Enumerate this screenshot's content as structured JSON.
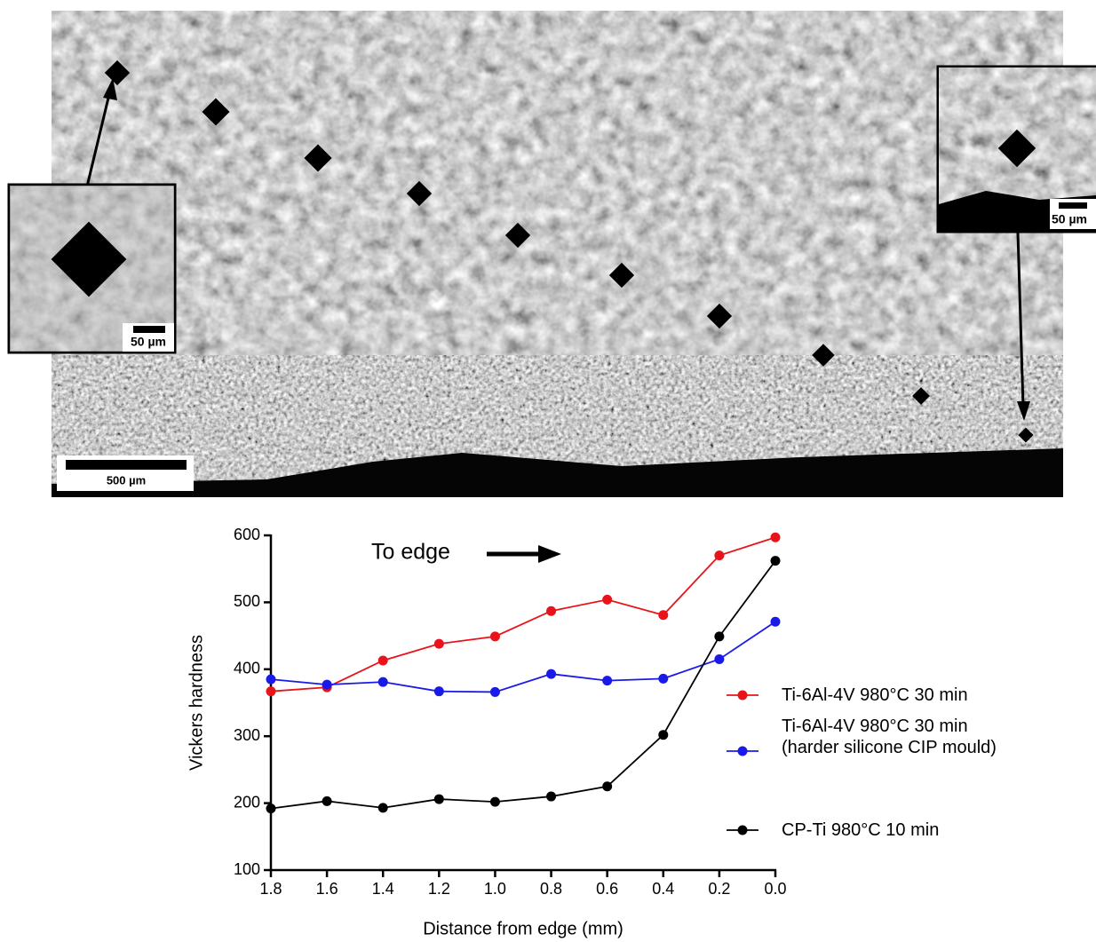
{
  "micrograph": {
    "scale_bar": "500 µm",
    "inset_left_scale": "50 µm",
    "inset_right_scale": "50 µm"
  },
  "chart_data": {
    "type": "line",
    "annotation": "To edge",
    "xlabel": "Distance from edge (mm)",
    "ylabel": "Vickers hardness",
    "x": [
      1.8,
      1.6,
      1.4,
      1.2,
      1.0,
      0.8,
      0.6,
      0.4,
      0.2,
      0.0
    ],
    "series": [
      {
        "name": "Ti-6Al-4V 980°C 30 min",
        "color": "#e8141a",
        "values": [
          367,
          373,
          413,
          438,
          449,
          487,
          504,
          481,
          570,
          597
        ]
      },
      {
        "name": "Ti-6Al-4V 980°C 30 min\n(harder silicone CIP mould)",
        "color": "#1a1ae8",
        "values": [
          385,
          377,
          381,
          367,
          366,
          393,
          383,
          386,
          415,
          471
        ]
      },
      {
        "name": "CP-Ti 980°C 10 min",
        "color": "#000000",
        "values": [
          192,
          203,
          193,
          206,
          202,
          210,
          225,
          302,
          449,
          562
        ]
      }
    ],
    "xlim": [
      1.8,
      0.0
    ],
    "ylim": [
      100,
      600
    ],
    "xticks": [
      1.8,
      1.6,
      1.4,
      1.2,
      {
        "value": 1.0,
        "label": "1.0"
      },
      0.8,
      0.6,
      0.4,
      0.2,
      {
        "value": 0.0,
        "label": "0.0"
      }
    ],
    "yticks": [
      100,
      200,
      300,
      400,
      500,
      600
    ]
  }
}
